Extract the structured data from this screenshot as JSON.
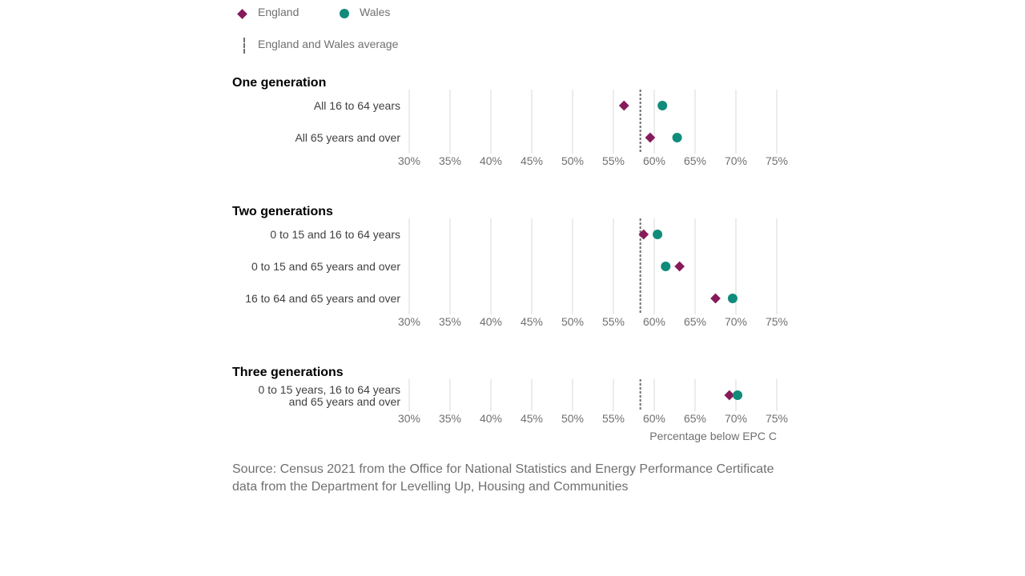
{
  "colors": {
    "england": "#871A5B",
    "wales": "#118C7B",
    "grid": "#d9d9d9",
    "average": "#707071",
    "text": "#414042",
    "muted": "#707071"
  },
  "legend": {
    "england_label": "England",
    "wales_label": "Wales",
    "average_label": "England and Wales average"
  },
  "chart_data": {
    "type": "scatter",
    "series": [
      {
        "name": "England",
        "marker": "diamond"
      },
      {
        "name": "Wales",
        "marker": "circle"
      }
    ],
    "average": 58.3,
    "xlim": [
      30,
      75
    ],
    "ticks": [
      "30%",
      "35%",
      "40%",
      "45%",
      "50%",
      "55%",
      "60%",
      "65%",
      "70%",
      "75%"
    ],
    "tick_values": [
      30,
      35,
      40,
      45,
      50,
      55,
      60,
      65,
      70,
      75
    ],
    "xlabel": "Percentage below EPC C",
    "panels": [
      {
        "title": "One generation",
        "rows": [
          {
            "label": [
              "All 16 to 64 years"
            ],
            "england": 56.3,
            "wales": 61.0
          },
          {
            "label": [
              "All 65 years and over"
            ],
            "england": 59.5,
            "wales": 62.8
          }
        ]
      },
      {
        "title": "Two generations",
        "rows": [
          {
            "label": [
              "0 to 15 and 16 to 64 years"
            ],
            "england": 58.7,
            "wales": 60.4
          },
          {
            "label": [
              "0 to 15 and 65 years and over"
            ],
            "england": 63.1,
            "wales": 61.4
          },
          {
            "label": [
              "16 to 64 and 65 years and over"
            ],
            "england": 67.5,
            "wales": 69.6
          }
        ]
      },
      {
        "title": "Three generations",
        "rows": [
          {
            "label": [
              "0 to 15 years, 16 to 64 years",
              "and 65 years and over"
            ],
            "england": 69.2,
            "wales": 70.2
          }
        ]
      }
    ]
  },
  "source": "Source: Census 2021 from the Office for National Statistics and Energy Performance Certificate data from the Department for Levelling Up, Housing and Communities"
}
